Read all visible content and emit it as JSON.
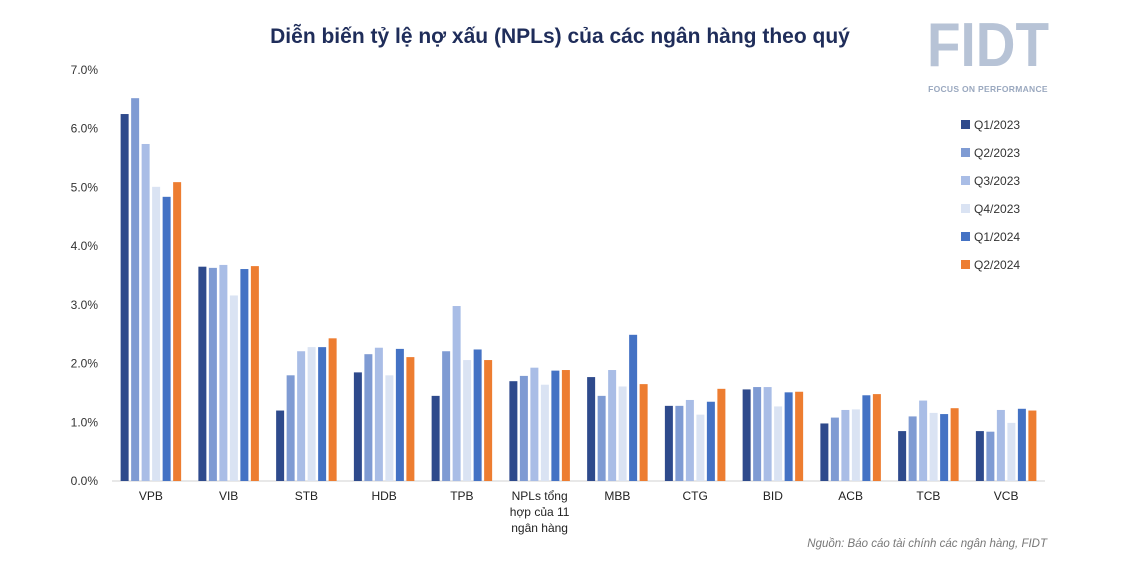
{
  "chart_data": {
    "type": "bar",
    "title": "Diễn biến tỷ lệ nợ xấu (NPLs) của các ngân hàng theo quý",
    "xlabel": "",
    "ylabel": "",
    "ylim": [
      0,
      7
    ],
    "yticks": [
      "0.0%",
      "1.0%",
      "2.0%",
      "3.0%",
      "4.0%",
      "5.0%",
      "6.0%",
      "7.0%"
    ],
    "categories": [
      "VPB",
      "VIB",
      "STB",
      "HDB",
      "TPB",
      "NPLs tổng hợp của 11 ngân hàng",
      "MBB",
      "CTG",
      "BID",
      "ACB",
      "TCB",
      "VCB"
    ],
    "category_lines": [
      [
        "VPB"
      ],
      [
        "VIB"
      ],
      [
        "STB"
      ],
      [
        "HDB"
      ],
      [
        "TPB"
      ],
      [
        "NPLs tổng",
        "hợp của 11",
        "ngân hàng"
      ],
      [
        "MBB"
      ],
      [
        "CTG"
      ],
      [
        "BID"
      ],
      [
        "ACB"
      ],
      [
        "TCB"
      ],
      [
        "VCB"
      ]
    ],
    "series": [
      {
        "name": "Q1/2023",
        "color": "#2e4a8c",
        "values": [
          6.25,
          3.65,
          1.2,
          1.85,
          1.45,
          1.7,
          1.77,
          1.28,
          1.56,
          0.98,
          0.85,
          0.85
        ]
      },
      {
        "name": "Q2/2023",
        "color": "#7f9bd3",
        "values": [
          6.52,
          3.63,
          1.8,
          2.16,
          2.21,
          1.79,
          1.45,
          1.28,
          1.6,
          1.08,
          1.1,
          0.84
        ]
      },
      {
        "name": "Q3/2023",
        "color": "#a9bde6",
        "values": [
          5.74,
          3.68,
          2.21,
          2.27,
          2.98,
          1.93,
          1.89,
          1.38,
          1.6,
          1.21,
          1.37,
          1.21
        ]
      },
      {
        "name": "Q4/2023",
        "color": "#dae3f3",
        "values": [
          5.01,
          3.16,
          2.28,
          1.8,
          2.06,
          1.64,
          1.61,
          1.13,
          1.27,
          1.22,
          1.16,
          0.99
        ]
      },
      {
        "name": "Q1/2024",
        "color": "#4472c4",
        "values": [
          4.84,
          3.61,
          2.28,
          2.25,
          2.24,
          1.88,
          2.49,
          1.35,
          1.51,
          1.46,
          1.14,
          1.23
        ]
      },
      {
        "name": "Q2/2024",
        "color": "#ed7d31",
        "values": [
          5.09,
          3.66,
          2.43,
          2.11,
          2.06,
          1.89,
          1.65,
          1.57,
          1.52,
          1.48,
          1.24,
          1.2
        ]
      }
    ],
    "legend_position": "right",
    "grid": false
  },
  "logo": {
    "text": "FIDT",
    "tagline": "FOCUS ON PERFORMANCE"
  },
  "source": "Nguồn: Báo cáo tài chính các ngân hàng, FIDT"
}
